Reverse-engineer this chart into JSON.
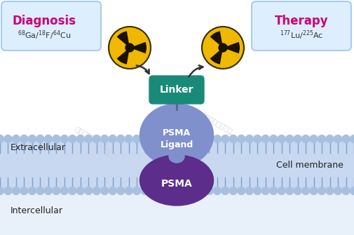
{
  "bg_color": "#ffffff",
  "membrane_color": "#c8d8f0",
  "membrane_head_color": "#a8c0e0",
  "membrane_tail_color": "#7aa0d0",
  "linker_color": "#1a8a78",
  "psma_ligand_color": "#8090cc",
  "psma_color": "#5c2d8a",
  "diagnosis_box_color": "#ddeeff",
  "therapy_box_color": "#ddeeff",
  "box_edge_color": "#aaccee",
  "diagnosis_text": "Diagnosis",
  "diagnosis_subtext": "$^{68}$Ga/$^{18}$F/$^{64}$Cu",
  "therapy_text": "Therapy",
  "therapy_subtext": "$^{177}$Lu/$^{225}$Ac",
  "linker_label": "Linker",
  "psma_ligand_label": "PSMA\nLigand",
  "psma_label": "PSMA",
  "extracellular_label": "Extracellular",
  "intercellular_label": "Intercellular",
  "cell_membrane_label": "Cell membrane",
  "radiation_yellow": "#f0b800",
  "radiation_dark": "#1a1200",
  "watermark_color": "#c0ccdd",
  "diagnosis_color": "#cc0077",
  "therapy_color": "#cc0077",
  "intercell_bg": "#e8f0fa",
  "extracell_bg": "#ffffff"
}
